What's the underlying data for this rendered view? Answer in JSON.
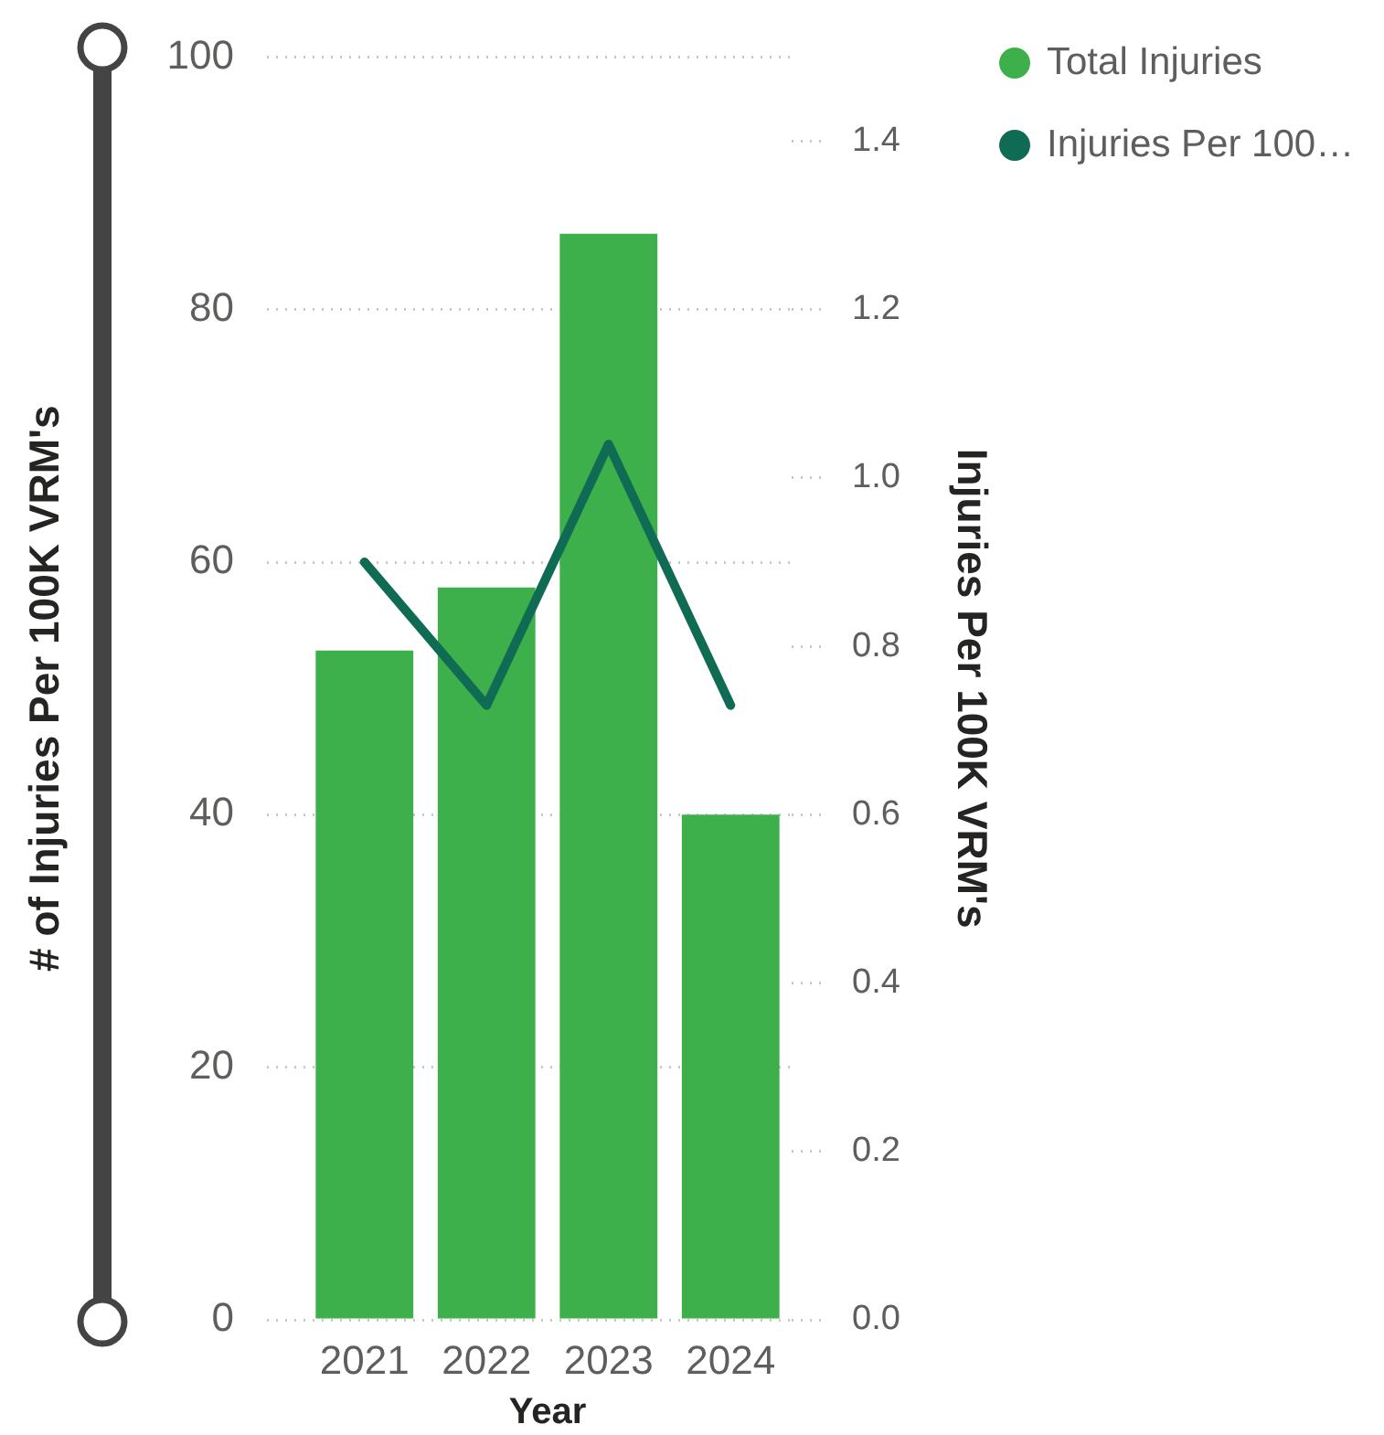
{
  "chart_data": {
    "type": "bar",
    "xlabel": "Year",
    "ylabel": "# of Injuries Per 100K VRM's",
    "y2label": "Injuries Per 100K VRM's",
    "categories": [
      "2021",
      "2022",
      "2023",
      "2024"
    ],
    "series": [
      {
        "name": "Total Injuries",
        "color": "#3db04b",
        "values": [
          53,
          58,
          86,
          40
        ]
      },
      {
        "name": "Injuries Per 100…",
        "type": "line",
        "axis": "y2",
        "color": "#0f6b53",
        "values": [
          0.9,
          0.73,
          1.04,
          0.73
        ]
      }
    ],
    "ylim": [
      0,
      100
    ],
    "yticks": [
      0,
      20,
      40,
      60,
      80,
      100
    ],
    "y2lim": [
      0,
      1.5
    ],
    "y2ticks": [
      {
        "value": 0,
        "label": "0.0"
      },
      0.2,
      0.4,
      0.6,
      0.8,
      {
        "value": 1,
        "label": "1.0"
      },
      1.2,
      1.4
    ],
    "grid": "y",
    "legend": "top right",
    "marker": "none",
    "line_style": "solid"
  }
}
